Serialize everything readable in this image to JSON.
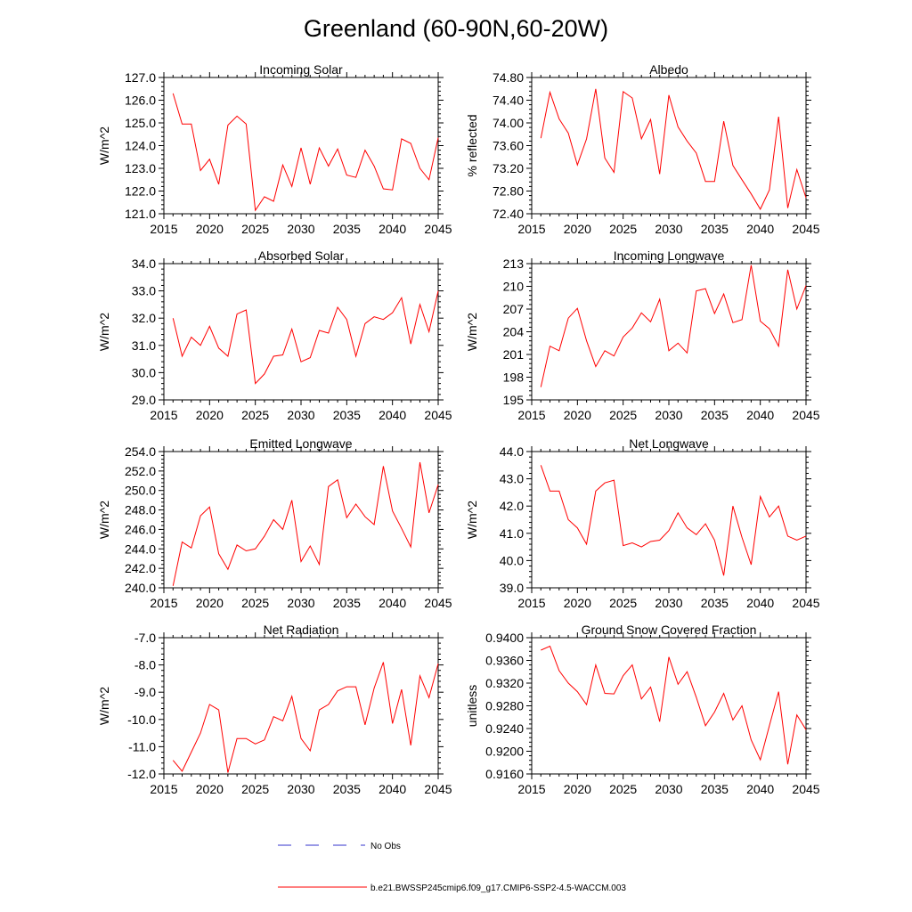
{
  "figure": {
    "title": "Greenland (60-90N,60-20W)",
    "legend": [
      {
        "label": "No Obs",
        "color": "#3333cc",
        "style": "dashed"
      },
      {
        "label": "b.e21.BWSSP245cmip6.f09_g17.CMIP6-SSP2-4.5-WACCM.003",
        "color": "#ff0000",
        "style": "solid"
      }
    ]
  },
  "chart_data": [
    {
      "type": "line",
      "title": "Incoming Solar",
      "ylabel": "W/m^2",
      "xlim": [
        2015,
        2045
      ],
      "ylim": [
        121.0,
        127.0
      ],
      "xticks": [
        2015,
        2020,
        2025,
        2030,
        2035,
        2040,
        2045
      ],
      "xtick_labels": [
        "2015",
        "2020",
        "2025",
        "2030",
        "2035",
        "2040",
        "2045"
      ],
      "yticks": [
        121.0,
        122.0,
        123.0,
        124.0,
        125.0,
        126.0,
        127.0
      ],
      "ytick_labels": [
        "121.0",
        "122.0",
        "123.0",
        "124.0",
        "125.0",
        "126.0",
        "127.0"
      ],
      "x": [
        2016,
        2017,
        2018,
        2019,
        2020,
        2021,
        2022,
        2023,
        2024,
        2025,
        2026,
        2027,
        2028,
        2029,
        2030,
        2031,
        2032,
        2033,
        2034,
        2035,
        2036,
        2037,
        2038,
        2039,
        2040,
        2041,
        2042,
        2043,
        2044,
        2045
      ],
      "series": [
        {
          "name": "b.e21.BWSSP245cmip6.f09_g17.CMIP6-SSP2-4.5-WACCM.003",
          "color": "#ff0000",
          "values": [
            126.3,
            124.95,
            124.95,
            122.9,
            123.4,
            122.3,
            124.9,
            125.3,
            124.95,
            121.15,
            121.75,
            121.55,
            123.15,
            122.2,
            123.9,
            122.3,
            123.9,
            123.1,
            123.85,
            122.7,
            122.6,
            123.8,
            123.1,
            122.1,
            122.05,
            124.3,
            124.1,
            123.0,
            122.5,
            124.35
          ]
        }
      ]
    },
    {
      "type": "line",
      "title": "Albedo",
      "ylabel": "% reflected",
      "xlim": [
        2015,
        2045
      ],
      "ylim": [
        72.4,
        74.8
      ],
      "xticks": [
        2015,
        2020,
        2025,
        2030,
        2035,
        2040,
        2045
      ],
      "xtick_labels": [
        "2015",
        "2020",
        "2025",
        "2030",
        "2035",
        "2040",
        "2045"
      ],
      "yticks": [
        72.4,
        72.8,
        73.2,
        73.6,
        74.0,
        74.4,
        74.8
      ],
      "ytick_labels": [
        "72.40",
        "72.80",
        "73.20",
        "73.60",
        "74.00",
        "74.40",
        "74.80"
      ],
      "x": [
        2016,
        2017,
        2018,
        2019,
        2020,
        2021,
        2022,
        2023,
        2024,
        2025,
        2026,
        2027,
        2028,
        2029,
        2030,
        2031,
        2032,
        2033,
        2034,
        2035,
        2036,
        2037,
        2038,
        2039,
        2040,
        2041,
        2042,
        2043,
        2044,
        2045
      ],
      "series": [
        {
          "name": "b.e21.BWSSP245cmip6.f09_g17.CMIP6-SSP2-4.5-WACCM.003",
          "color": "#ff0000",
          "values": [
            73.73,
            74.54,
            74.07,
            73.82,
            73.26,
            73.72,
            74.6,
            73.38,
            73.13,
            74.55,
            74.44,
            73.72,
            74.06,
            73.1,
            74.49,
            73.93,
            73.68,
            73.47,
            72.97,
            72.97,
            74.03,
            73.25,
            73.0,
            72.75,
            72.48,
            72.82,
            74.11,
            72.5,
            73.18,
            72.68
          ]
        }
      ]
    },
    {
      "type": "line",
      "title": "Absorbed Solar",
      "ylabel": "W/m^2",
      "xlim": [
        2015,
        2045
      ],
      "ylim": [
        29.0,
        34.0
      ],
      "xticks": [
        2015,
        2020,
        2025,
        2030,
        2035,
        2040,
        2045
      ],
      "xtick_labels": [
        "2015",
        "2020",
        "2025",
        "2030",
        "2035",
        "2040",
        "2045"
      ],
      "yticks": [
        29.0,
        30.0,
        31.0,
        32.0,
        33.0,
        34.0
      ],
      "ytick_labels": [
        "29.0",
        "30.0",
        "31.0",
        "32.0",
        "33.0",
        "34.0"
      ],
      "x": [
        2016,
        2017,
        2018,
        2019,
        2020,
        2021,
        2022,
        2023,
        2024,
        2025,
        2026,
        2027,
        2028,
        2029,
        2030,
        2031,
        2032,
        2033,
        2034,
        2035,
        2036,
        2037,
        2038,
        2039,
        2040,
        2041,
        2042,
        2043,
        2044,
        2045
      ],
      "series": [
        {
          "name": "b.e21.BWSSP245cmip6.f09_g17.CMIP6-SSP2-4.5-WACCM.003",
          "color": "#ff0000",
          "values": [
            32.0,
            30.6,
            31.3,
            31.0,
            31.7,
            30.9,
            30.6,
            32.15,
            32.3,
            29.6,
            29.95,
            30.6,
            30.65,
            31.6,
            30.4,
            30.55,
            31.55,
            31.45,
            32.4,
            31.95,
            30.6,
            31.8,
            32.05,
            31.95,
            32.2,
            32.75,
            31.05,
            32.5,
            31.5,
            33.0
          ]
        }
      ]
    },
    {
      "type": "line",
      "title": "Incoming Longwave",
      "ylabel": "W/m^2",
      "xlim": [
        2015,
        2045
      ],
      "ylim": [
        195,
        213
      ],
      "xticks": [
        2015,
        2020,
        2025,
        2030,
        2035,
        2040,
        2045
      ],
      "xtick_labels": [
        "2015",
        "2020",
        "2025",
        "2030",
        "2035",
        "2040",
        "2045"
      ],
      "yticks": [
        195,
        198,
        201,
        204,
        207,
        210,
        213
      ],
      "ytick_labels": [
        "195",
        "198",
        "201",
        "204",
        "207",
        "210",
        "213"
      ],
      "x": [
        2016,
        2017,
        2018,
        2019,
        2020,
        2021,
        2022,
        2023,
        2024,
        2025,
        2026,
        2027,
        2028,
        2029,
        2030,
        2031,
        2032,
        2033,
        2034,
        2035,
        2036,
        2037,
        2038,
        2039,
        2040,
        2041,
        2042,
        2043,
        2044,
        2045
      ],
      "series": [
        {
          "name": "b.e21.BWSSP245cmip6.f09_g17.CMIP6-SSP2-4.5-WACCM.003",
          "color": "#ff0000",
          "values": [
            196.7,
            202.1,
            201.5,
            205.8,
            207.1,
            202.8,
            199.4,
            201.5,
            200.8,
            203.3,
            204.5,
            206.5,
            205.3,
            208.3,
            201.5,
            202.5,
            201.2,
            209.4,
            209.7,
            206.4,
            209.0,
            205.2,
            205.6,
            212.8,
            205.4,
            204.4,
            202.1,
            212.2,
            207.0,
            210.1
          ]
        }
      ]
    },
    {
      "type": "line",
      "title": "Emitted Longwave",
      "ylabel": "W/m^2",
      "xlim": [
        2015,
        2045
      ],
      "ylim": [
        240.0,
        254.0
      ],
      "xticks": [
        2015,
        2020,
        2025,
        2030,
        2035,
        2040,
        2045
      ],
      "xtick_labels": [
        "2015",
        "2020",
        "2025",
        "2030",
        "2035",
        "2040",
        "2045"
      ],
      "yticks": [
        240.0,
        242.0,
        244.0,
        246.0,
        248.0,
        250.0,
        252.0,
        254.0
      ],
      "ytick_labels": [
        "240.0",
        "242.0",
        "244.0",
        "246.0",
        "248.0",
        "250.0",
        "252.0",
        "254.0"
      ],
      "x": [
        2016,
        2017,
        2018,
        2019,
        2020,
        2021,
        2022,
        2023,
        2024,
        2025,
        2026,
        2027,
        2028,
        2029,
        2030,
        2031,
        2032,
        2033,
        2034,
        2035,
        2036,
        2037,
        2038,
        2039,
        2040,
        2041,
        2042,
        2043,
        2044,
        2045
      ],
      "series": [
        {
          "name": "b.e21.BWSSP245cmip6.f09_g17.CMIP6-SSP2-4.5-WACCM.003",
          "color": "#ff0000",
          "values": [
            240.2,
            244.7,
            244.1,
            247.4,
            248.3,
            243.5,
            241.9,
            244.4,
            243.8,
            244.0,
            245.3,
            247.0,
            246.0,
            249.0,
            242.7,
            244.3,
            242.4,
            250.4,
            251.1,
            247.2,
            248.6,
            247.3,
            246.5,
            252.5,
            247.9,
            246.1,
            244.2,
            252.9,
            247.7,
            250.6
          ]
        }
      ]
    },
    {
      "type": "line",
      "title": "Net Longwave",
      "ylabel": "W/m^2",
      "xlim": [
        2015,
        2045
      ],
      "ylim": [
        39.0,
        44.0
      ],
      "xticks": [
        2015,
        2020,
        2025,
        2030,
        2035,
        2040,
        2045
      ],
      "xtick_labels": [
        "2015",
        "2020",
        "2025",
        "2030",
        "2035",
        "2040",
        "2045"
      ],
      "yticks": [
        39.0,
        40.0,
        41.0,
        42.0,
        43.0,
        44.0
      ],
      "ytick_labels": [
        "39.0",
        "40.0",
        "41.0",
        "42.0",
        "43.0",
        "44.0"
      ],
      "x": [
        2016,
        2017,
        2018,
        2019,
        2020,
        2021,
        2022,
        2023,
        2024,
        2025,
        2026,
        2027,
        2028,
        2029,
        2030,
        2031,
        2032,
        2033,
        2034,
        2035,
        2036,
        2037,
        2038,
        2039,
        2040,
        2041,
        2042,
        2043,
        2044,
        2045
      ],
      "series": [
        {
          "name": "b.e21.BWSSP245cmip6.f09_g17.CMIP6-SSP2-4.5-WACCM.003",
          "color": "#ff0000",
          "values": [
            43.5,
            42.55,
            42.55,
            41.5,
            41.2,
            40.6,
            42.55,
            42.85,
            42.95,
            40.55,
            40.65,
            40.5,
            40.7,
            40.75,
            41.1,
            41.75,
            41.2,
            40.95,
            41.35,
            40.75,
            39.45,
            42.0,
            40.85,
            39.85,
            42.35,
            41.6,
            42.0,
            40.9,
            40.75,
            40.9
          ]
        }
      ]
    },
    {
      "type": "line",
      "title": "Net Radiation",
      "ylabel": "W/m^2",
      "xlim": [
        2015,
        2045
      ],
      "ylim": [
        -12.0,
        -7.0
      ],
      "xticks": [
        2015,
        2020,
        2025,
        2030,
        2035,
        2040,
        2045
      ],
      "xtick_labels": [
        "2015",
        "2020",
        "2025",
        "2030",
        "2035",
        "2040",
        "2045"
      ],
      "yticks": [
        -12.0,
        -11.0,
        -10.0,
        -9.0,
        -8.0,
        -7.0
      ],
      "ytick_labels": [
        "-12.0",
        "-11.0",
        "-10.0",
        "-9.0",
        "-8.0",
        "-7.0"
      ],
      "x": [
        2016,
        2017,
        2018,
        2019,
        2020,
        2021,
        2022,
        2023,
        2024,
        2025,
        2026,
        2027,
        2028,
        2029,
        2030,
        2031,
        2032,
        2033,
        2034,
        2035,
        2036,
        2037,
        2038,
        2039,
        2040,
        2041,
        2042,
        2043,
        2044,
        2045
      ],
      "series": [
        {
          "name": "b.e21.BWSSP245cmip6.f09_g17.CMIP6-SSP2-4.5-WACCM.003",
          "color": "#ff0000",
          "values": [
            -11.5,
            -11.9,
            -11.2,
            -10.5,
            -9.45,
            -9.65,
            -11.95,
            -10.7,
            -10.7,
            -10.9,
            -10.75,
            -9.9,
            -10.05,
            -9.15,
            -10.7,
            -11.15,
            -9.65,
            -9.45,
            -8.95,
            -8.8,
            -8.8,
            -10.2,
            -8.85,
            -7.9,
            -10.15,
            -8.9,
            -10.95,
            -8.4,
            -9.2,
            -7.95
          ]
        }
      ]
    },
    {
      "type": "line",
      "title": "Ground Snow Covered Fraction",
      "ylabel": "unitless",
      "xlim": [
        2015,
        2045
      ],
      "ylim": [
        0.916,
        0.94
      ],
      "xticks": [
        2015,
        2020,
        2025,
        2030,
        2035,
        2040,
        2045
      ],
      "xtick_labels": [
        "2015",
        "2020",
        "2025",
        "2030",
        "2035",
        "2040",
        "2045"
      ],
      "yticks": [
        0.916,
        0.92,
        0.924,
        0.928,
        0.932,
        0.936,
        0.94
      ],
      "ytick_labels": [
        "0.9160",
        "0.9200",
        "0.9240",
        "0.9280",
        "0.9320",
        "0.9360",
        "0.9400"
      ],
      "x": [
        2016,
        2017,
        2018,
        2019,
        2020,
        2021,
        2022,
        2023,
        2024,
        2025,
        2026,
        2027,
        2028,
        2029,
        2030,
        2031,
        2032,
        2033,
        2034,
        2035,
        2036,
        2037,
        2038,
        2039,
        2040,
        2041,
        2042,
        2043,
        2044,
        2045
      ],
      "series": [
        {
          "name": "b.e21.BWSSP245cmip6.f09_g17.CMIP6-SSP2-4.5-WACCM.003",
          "color": "#ff0000",
          "values": [
            0.9378,
            0.9385,
            0.9342,
            0.932,
            0.9305,
            0.9282,
            0.9352,
            0.9302,
            0.9301,
            0.9333,
            0.9352,
            0.9292,
            0.9313,
            0.9252,
            0.9366,
            0.9318,
            0.934,
            0.9295,
            0.9245,
            0.9269,
            0.9302,
            0.9255,
            0.928,
            0.922,
            0.9185,
            0.9245,
            0.9305,
            0.9177,
            0.9264,
            0.9238
          ]
        }
      ]
    }
  ]
}
